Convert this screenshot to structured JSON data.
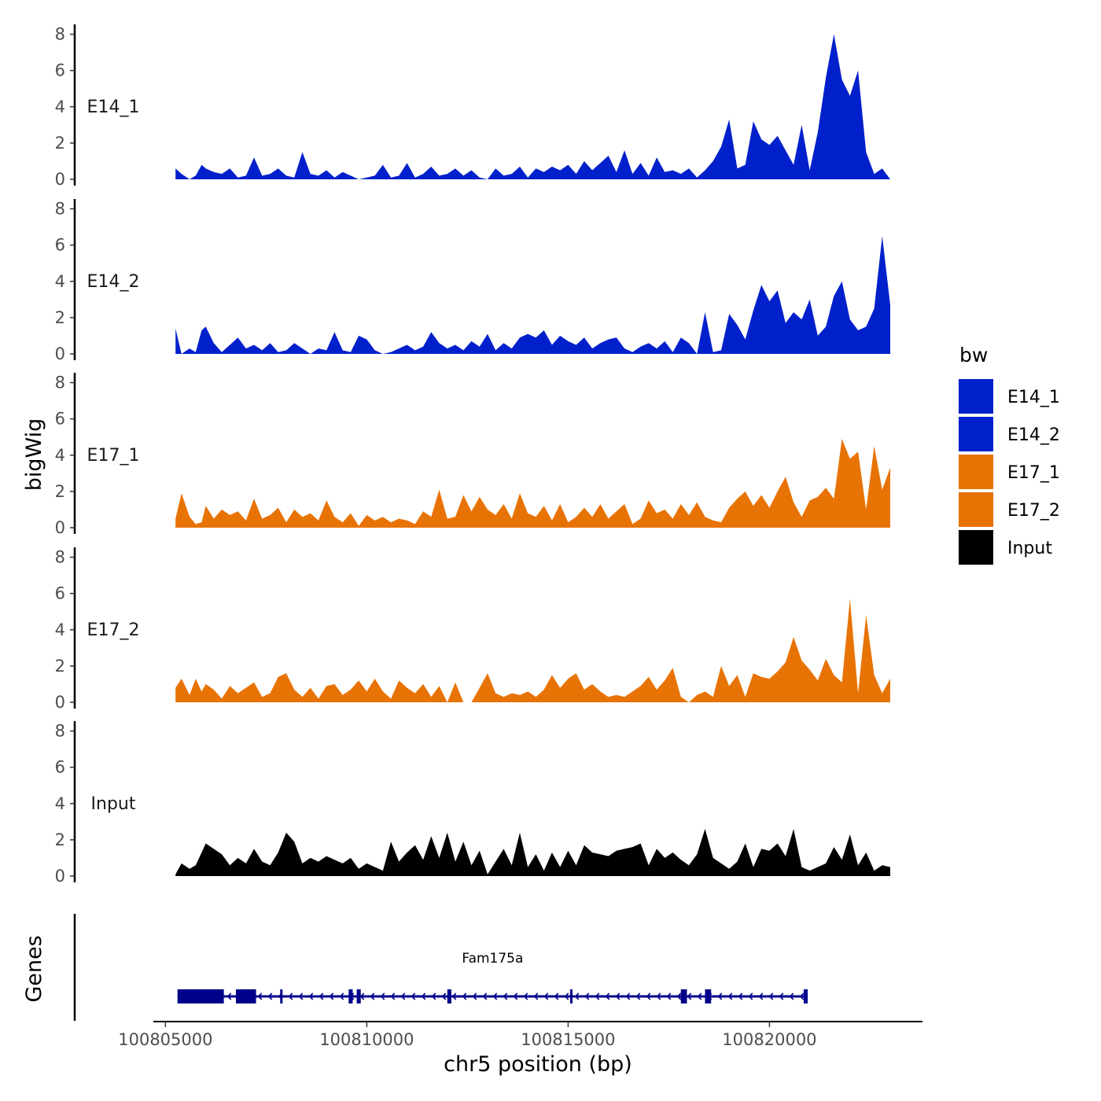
{
  "chart_data": {
    "type": "area",
    "ylabel": "bigWig",
    "xlabel": "chr5 position (bp)",
    "xlim": [
      100804700,
      100823800
    ],
    "xticks": [
      100805000,
      100810000,
      100815000,
      100820000
    ],
    "xtick_labels": [
      "100805000",
      "100810000",
      "100815000",
      "100820000"
    ],
    "ylim": [
      0,
      8.5
    ],
    "yticks": [
      0,
      2,
      4,
      6,
      8
    ],
    "ytick_labels": [
      "0",
      "2",
      "4",
      "6",
      "8"
    ],
    "tracks": [
      {
        "name": "E14_1",
        "color": "#0020CC",
        "x": [
          100805250,
          100805400,
          100805600,
          100805750,
          100805900,
          100806000,
          100806200,
          100806400,
          100806600,
          100806800,
          100807000,
          100807200,
          100807400,
          100807600,
          100807800,
          100808000,
          100808200,
          100808400,
          100808600,
          100808800,
          100809000,
          100809200,
          100809400,
          100809600,
          100809800,
          100810000,
          100810200,
          100810400,
          100810600,
          100810800,
          100811000,
          100811200,
          100811400,
          100811600,
          100811800,
          100812000,
          100812200,
          100812400,
          100812600,
          100812800,
          100813000,
          100813200,
          100813400,
          100813600,
          100813800,
          100814000,
          100814200,
          100814400,
          100814600,
          100814800,
          100815000,
          100815200,
          100815400,
          100815600,
          100815800,
          100816000,
          100816200,
          100816400,
          100816600,
          100816800,
          100817000,
          100817200,
          100817400,
          100817600,
          100817800,
          100818000,
          100818200,
          100818400,
          100818600,
          100818800,
          100819000,
          100819200,
          100819400,
          100819600,
          100819800,
          100820000,
          100820200,
          100820400,
          100820600,
          100820800,
          100821000,
          100821200,
          100821400,
          100821600,
          100821800,
          100822000,
          100822200,
          100822400,
          100822600,
          100822800,
          100823000
        ],
        "y": [
          0.6,
          0.3,
          0,
          0.2,
          0.8,
          0.6,
          0.4,
          0.3,
          0.6,
          0.1,
          0.2,
          1.2,
          0.2,
          0.3,
          0.6,
          0.2,
          0.1,
          1.5,
          0.3,
          0.2,
          0.5,
          0.1,
          0.4,
          0.2,
          0,
          0.1,
          0.2,
          0.8,
          0.1,
          0.2,
          0.9,
          0.1,
          0.3,
          0.7,
          0.2,
          0.3,
          0.6,
          0.2,
          0.5,
          0.1,
          0,
          0.6,
          0.2,
          0.3,
          0.7,
          0.1,
          0.6,
          0.4,
          0.7,
          0.5,
          0.8,
          0.3,
          1.0,
          0.5,
          0.9,
          1.3,
          0.4,
          1.6,
          0.3,
          0.9,
          0.2,
          1.2,
          0.4,
          0.5,
          0.3,
          0.6,
          0.1,
          0.5,
          1.0,
          1.8,
          3.3,
          0.6,
          0.8,
          3.2,
          2.2,
          1.9,
          2.4,
          1.6,
          0.8,
          3.0,
          0.5,
          2.6,
          5.6,
          8.0,
          5.5,
          4.6,
          6.0,
          1.5,
          0.3,
          0.6,
          0
        ]
      },
      {
        "name": "E14_2",
        "color": "#0020CC",
        "x": [
          100805250,
          100805400,
          100805600,
          100805750,
          100805900,
          100806000,
          100806200,
          100806400,
          100806600,
          100806800,
          100807000,
          100807200,
          100807400,
          100807600,
          100807800,
          100808000,
          100808200,
          100808400,
          100808600,
          100808800,
          100809000,
          100809200,
          100809400,
          100809600,
          100809800,
          100810000,
          100810200,
          100810400,
          100810600,
          100810800,
          100811000,
          100811200,
          100811400,
          100811600,
          100811800,
          100812000,
          100812200,
          100812400,
          100812600,
          100812800,
          100813000,
          100813200,
          100813400,
          100813600,
          100813800,
          100814000,
          100814200,
          100814400,
          100814600,
          100814800,
          100815000,
          100815200,
          100815400,
          100815600,
          100815800,
          100816000,
          100816200,
          100816400,
          100816600,
          100816800,
          100817000,
          100817200,
          100817400,
          100817600,
          100817800,
          100818000,
          100818200,
          100818400,
          100818600,
          100818800,
          100819000,
          100819200,
          100819400,
          100819600,
          100819800,
          100820000,
          100820200,
          100820400,
          100820600,
          100820800,
          100821000,
          100821200,
          100821400,
          100821600,
          100821800,
          100822000,
          100822200,
          100822400,
          100822600,
          100822800,
          100823000
        ],
        "y": [
          1.4,
          0,
          0.3,
          0.1,
          1.3,
          1.5,
          0.6,
          0.1,
          0.5,
          0.9,
          0.3,
          0.5,
          0.2,
          0.6,
          0.1,
          0.2,
          0.6,
          0.3,
          0,
          0.3,
          0.2,
          1.2,
          0.2,
          0.1,
          1.0,
          0.8,
          0.2,
          0,
          0.1,
          0.3,
          0.5,
          0.2,
          0.4,
          1.2,
          0.6,
          0.3,
          0.5,
          0.2,
          0.7,
          0.4,
          1.1,
          0.2,
          0.6,
          0.3,
          0.9,
          1.1,
          0.9,
          1.3,
          0.5,
          1.0,
          0.7,
          0.5,
          0.9,
          0.3,
          0.6,
          0.8,
          0.9,
          0.3,
          0.1,
          0.4,
          0.6,
          0.3,
          0.7,
          0.1,
          0.9,
          0.6,
          0,
          2.3,
          0.1,
          0.2,
          2.2,
          1.6,
          0.8,
          2.4,
          3.8,
          2.9,
          3.5,
          1.7,
          2.3,
          1.9,
          3.0,
          1.0,
          1.5,
          3.2,
          4.0,
          1.9,
          1.3,
          1.5,
          2.5,
          6.5,
          2.7
        ]
      },
      {
        "name": "E17_1",
        "color": "#E87305",
        "x": [
          100805250,
          100805400,
          100805600,
          100805750,
          100805900,
          100806000,
          100806200,
          100806400,
          100806600,
          100806800,
          100807000,
          100807200,
          100807400,
          100807600,
          100807800,
          100808000,
          100808200,
          100808400,
          100808600,
          100808800,
          100809000,
          100809200,
          100809400,
          100809600,
          100809800,
          100810000,
          100810200,
          100810400,
          100810600,
          100810800,
          100811000,
          100811200,
          100811400,
          100811600,
          100811800,
          100812000,
          100812200,
          100812400,
          100812600,
          100812800,
          100813000,
          100813200,
          100813400,
          100813600,
          100813800,
          100814000,
          100814200,
          100814400,
          100814600,
          100814800,
          100815000,
          100815200,
          100815400,
          100815600,
          100815800,
          100816000,
          100816200,
          100816400,
          100816600,
          100816800,
          100817000,
          100817200,
          100817400,
          100817600,
          100817800,
          100818000,
          100818200,
          100818400,
          100818600,
          100818800,
          100819000,
          100819200,
          100819400,
          100819600,
          100819800,
          100820000,
          100820200,
          100820400,
          100820600,
          100820800,
          100821000,
          100821200,
          100821400,
          100821600,
          100821800,
          100822000,
          100822200,
          100822400,
          100822600,
          100822800,
          100823000
        ],
        "y": [
          0.5,
          1.9,
          0.6,
          0.2,
          0.3,
          1.2,
          0.5,
          1.0,
          0.7,
          0.9,
          0.4,
          1.6,
          0.5,
          0.7,
          1.1,
          0.3,
          1.0,
          0.6,
          0.8,
          0.4,
          1.5,
          0.6,
          0.3,
          0.8,
          0.1,
          0.7,
          0.4,
          0.6,
          0.3,
          0.5,
          0.4,
          0.2,
          0.9,
          0.6,
          2.1,
          0.5,
          0.6,
          1.8,
          0.9,
          1.7,
          1.0,
          0.7,
          1.3,
          0.5,
          1.9,
          0.8,
          0.6,
          1.2,
          0.4,
          1.3,
          0.3,
          0.6,
          1.1,
          0.6,
          1.3,
          0.5,
          0.9,
          1.3,
          0.2,
          0.5,
          1.5,
          0.8,
          1.0,
          0.5,
          1.3,
          0.7,
          1.4,
          0.6,
          0.4,
          0.3,
          1.1,
          1.6,
          2.0,
          1.2,
          1.8,
          1.1,
          2.0,
          2.8,
          1.4,
          0.6,
          1.5,
          1.7,
          2.2,
          1.6,
          4.9,
          3.8,
          4.2,
          1.0,
          4.5,
          2.1,
          3.3
        ]
      },
      {
        "name": "E17_2",
        "color": "#E87305",
        "x": [
          100805250,
          100805400,
          100805600,
          100805750,
          100805900,
          100806000,
          100806200,
          100806400,
          100806600,
          100806800,
          100807000,
          100807200,
          100807400,
          100807600,
          100807800,
          100808000,
          100808200,
          100808400,
          100808600,
          100808800,
          100809000,
          100809200,
          100809400,
          100809600,
          100809800,
          100810000,
          100810200,
          100810400,
          100810600,
          100810800,
          100811000,
          100811200,
          100811400,
          100811600,
          100811800,
          100812000,
          100812200,
          100812400,
          100812600,
          100812800,
          100813000,
          100813200,
          100813400,
          100813600,
          100813800,
          100814000,
          100814200,
          100814400,
          100814600,
          100814800,
          100815000,
          100815200,
          100815400,
          100815600,
          100815800,
          100816000,
          100816200,
          100816400,
          100816600,
          100816800,
          100817000,
          100817200,
          100817400,
          100817600,
          100817800,
          100818000,
          100818200,
          100818400,
          100818600,
          100818800,
          100819000,
          100819200,
          100819400,
          100819600,
          100819800,
          100820000,
          100820200,
          100820400,
          100820600,
          100820800,
          100821000,
          100821200,
          100821400,
          100821600,
          100821800,
          100822000,
          100822200,
          100822400,
          100822600,
          100822800,
          100823000
        ],
        "y": [
          0.8,
          1.3,
          0.4,
          1.3,
          0.6,
          1.0,
          0.7,
          0.2,
          0.9,
          0.5,
          0.8,
          1.1,
          0.3,
          0.5,
          1.4,
          1.6,
          0.7,
          0.3,
          0.8,
          0.2,
          0.9,
          1.0,
          0.4,
          0.7,
          1.2,
          0.6,
          1.3,
          0.6,
          0.2,
          1.2,
          0.8,
          0.5,
          1.0,
          0.3,
          0.9,
          0,
          1.1,
          0,
          0,
          0.8,
          1.6,
          0.5,
          0.3,
          0.5,
          0.4,
          0.6,
          0.3,
          0.7,
          1.5,
          0.8,
          1.3,
          1.6,
          0.7,
          1.0,
          0.6,
          0.3,
          0.4,
          0.3,
          0.6,
          0.9,
          1.4,
          0.7,
          1.2,
          1.9,
          0.3,
          0,
          0.4,
          0.6,
          0.3,
          2.0,
          0.9,
          1.5,
          0.3,
          1.6,
          1.4,
          1.3,
          1.7,
          2.2,
          3.6,
          2.3,
          1.8,
          1.2,
          2.4,
          1.5,
          1.1,
          5.7,
          0.5,
          4.8,
          1.5,
          0.5,
          1.3
        ]
      },
      {
        "name": "Input",
        "color": "#000000",
        "x": [
          100805250,
          100805400,
          100805600,
          100805750,
          100805900,
          100806000,
          100806200,
          100806400,
          100806600,
          100806800,
          100807000,
          100807200,
          100807400,
          100807600,
          100807800,
          100808000,
          100808200,
          100808400,
          100808600,
          100808800,
          100809000,
          100809200,
          100809400,
          100809600,
          100809800,
          100810000,
          100810200,
          100810400,
          100810600,
          100810800,
          100811000,
          100811200,
          100811400,
          100811600,
          100811800,
          100812000,
          100812200,
          100812400,
          100812600,
          100812800,
          100813000,
          100813200,
          100813400,
          100813600,
          100813800,
          100814000,
          100814200,
          100814400,
          100814600,
          100814800,
          100815000,
          100815200,
          100815400,
          100815600,
          100815800,
          100816000,
          100816200,
          100816400,
          100816600,
          100816800,
          100817000,
          100817200,
          100817400,
          100817600,
          100817800,
          100818000,
          100818200,
          100818400,
          100818600,
          100818800,
          100819000,
          100819200,
          100819400,
          100819600,
          100819800,
          100820000,
          100820200,
          100820400,
          100820600,
          100820800,
          100821000,
          100821200,
          100821400,
          100821600,
          100821800,
          100822000,
          100822200,
          100822400,
          100822600,
          100822800,
          100823000
        ],
        "y": [
          0.1,
          0.7,
          0.4,
          0.6,
          1.3,
          1.8,
          1.5,
          1.2,
          0.6,
          1.0,
          0.7,
          1.5,
          0.8,
          0.6,
          1.3,
          2.4,
          1.9,
          0.7,
          1.0,
          0.8,
          1.1,
          0.9,
          0.7,
          1.0,
          0.4,
          0.7,
          0.5,
          0.3,
          1.9,
          0.8,
          1.3,
          1.7,
          0.9,
          2.2,
          1.0,
          2.4,
          0.8,
          1.9,
          0.6,
          1.4,
          0.1,
          0.8,
          1.5,
          0.6,
          2.4,
          0.5,
          1.2,
          0.3,
          1.3,
          0.5,
          1.4,
          0.6,
          1.7,
          1.3,
          1.2,
          1.1,
          1.4,
          1.5,
          1.6,
          1.8,
          0.6,
          1.5,
          1.0,
          1.3,
          0.9,
          0.6,
          1.2,
          2.6,
          1.0,
          0.7,
          0.4,
          0.8,
          1.8,
          0.5,
          1.5,
          1.4,
          1.8,
          1.1,
          2.6,
          0.5,
          0.3,
          0.5,
          0.7,
          1.6,
          0.9,
          2.3,
          0.6,
          1.3,
          0.3,
          0.6,
          0.5
        ]
      }
    ],
    "legend": {
      "title": "bw",
      "position": "right",
      "entries": [
        {
          "label": "E14_1",
          "color": "#0020CC"
        },
        {
          "label": "E14_2",
          "color": "#0020CC"
        },
        {
          "label": "E17_1",
          "color": "#E87305"
        },
        {
          "label": "E17_2",
          "color": "#E87305"
        },
        {
          "label": "Input",
          "color": "#000000"
        }
      ]
    },
    "genes": {
      "label": "Genes",
      "color": "#00008B",
      "transcripts": [
        {
          "name": "Fam175a",
          "strand": "-",
          "start": 100805300,
          "end": 100820950,
          "exons": [
            [
              100805300,
              100806450
            ],
            [
              100806750,
              100807250
            ],
            [
              100807850,
              100807900
            ],
            [
              100809550,
              100809650
            ],
            [
              100809750,
              100809850
            ],
            [
              100812000,
              100812100
            ],
            [
              100815050,
              100815100
            ],
            [
              100817800,
              100817950
            ],
            [
              100818400,
              100818550
            ],
            [
              100820850,
              100820950
            ]
          ]
        }
      ]
    }
  }
}
